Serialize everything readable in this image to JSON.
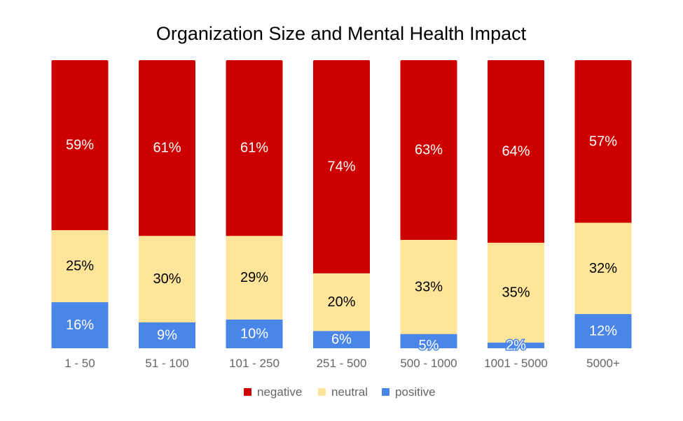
{
  "chart_data": {
    "type": "bar",
    "stacked": true,
    "normalized": true,
    "title": "Organization Size and Mental Health Impact",
    "categories": [
      "1 - 50",
      "51 - 100",
      "101 - 250",
      "251 - 500",
      "500 - 1000",
      "1001 - 5000",
      "5000+"
    ],
    "series": [
      {
        "name": "positive",
        "color": "#4a86e8",
        "label_color": "#ffffff",
        "values": [
          16,
          9,
          10,
          6,
          5,
          2,
          12
        ],
        "labels": [
          "16%",
          "9%",
          "10%",
          "6%",
          "5%",
          "2%",
          "12%"
        ]
      },
      {
        "name": "neutral",
        "color": "#ffe599",
        "label_color": "#000000",
        "values": [
          25,
          30,
          29,
          20,
          33,
          35,
          32
        ],
        "labels": [
          "25%",
          "30%",
          "29%",
          "20%",
          "33%",
          "35%",
          "32%"
        ]
      },
      {
        "name": "negative",
        "color": "#cc0000",
        "label_color": "#ffffff",
        "values": [
          59,
          61,
          61,
          74,
          63,
          64,
          57
        ],
        "labels": [
          "59%",
          "61%",
          "61%",
          "74%",
          "63%",
          "64%",
          "57%"
        ]
      }
    ],
    "legend": {
      "position": "bottom",
      "order": [
        "negative",
        "neutral",
        "positive"
      ]
    },
    "grid": false
  }
}
